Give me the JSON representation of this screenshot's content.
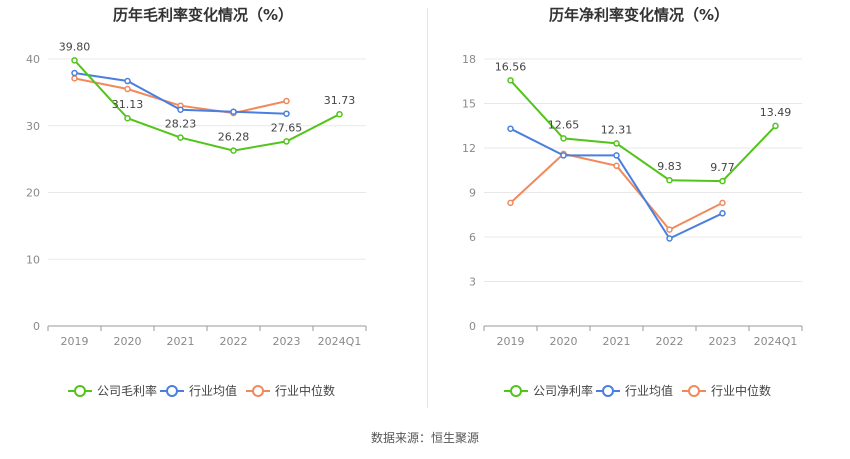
{
  "source_note": "数据来源：恒生聚源",
  "chart_data": [
    {
      "type": "line",
      "title": "历年毛利率变化情况（%）",
      "categories": [
        "2019",
        "2020",
        "2021",
        "2022",
        "2023",
        "2024Q1"
      ],
      "ylim": [
        0,
        40
      ],
      "yticks": [
        0,
        10,
        20,
        30,
        40
      ],
      "grid": true,
      "legend_position": "bottom",
      "series": [
        {
          "name": "公司毛利率",
          "color": "#52c41a",
          "values": [
            39.8,
            31.13,
            28.23,
            26.28,
            27.65,
            31.73
          ],
          "labels": [
            "39.80",
            "31.13",
            "28.23",
            "26.28",
            "27.65",
            "31.73"
          ]
        },
        {
          "name": "行业均值",
          "color": "#4a7fe0",
          "values": [
            37.9,
            36.7,
            32.4,
            32.1,
            31.8,
            null
          ]
        },
        {
          "name": "行业中位数",
          "color": "#f08a5d",
          "values": [
            37.1,
            35.5,
            33.0,
            31.9,
            33.7,
            null
          ]
        }
      ]
    },
    {
      "type": "line",
      "title": "历年净利率变化情况（%）",
      "categories": [
        "2019",
        "2020",
        "2021",
        "2022",
        "2023",
        "2024Q1"
      ],
      "ylim": [
        0,
        18
      ],
      "yticks": [
        0,
        3,
        6,
        9,
        12,
        15,
        18
      ],
      "grid": true,
      "legend_position": "bottom",
      "series": [
        {
          "name": "公司净利率",
          "color": "#52c41a",
          "values": [
            16.56,
            12.65,
            12.31,
            9.83,
            9.77,
            13.49
          ],
          "labels": [
            "16.56",
            "12.65",
            "12.31",
            "9.83",
            "9.77",
            "13.49"
          ]
        },
        {
          "name": "行业均值",
          "color": "#4a7fe0",
          "values": [
            13.3,
            11.5,
            11.5,
            5.9,
            7.6,
            null
          ]
        },
        {
          "name": "行业中位数",
          "color": "#f08a5d",
          "values": [
            8.3,
            11.6,
            10.8,
            6.5,
            8.3,
            null
          ]
        }
      ]
    }
  ]
}
